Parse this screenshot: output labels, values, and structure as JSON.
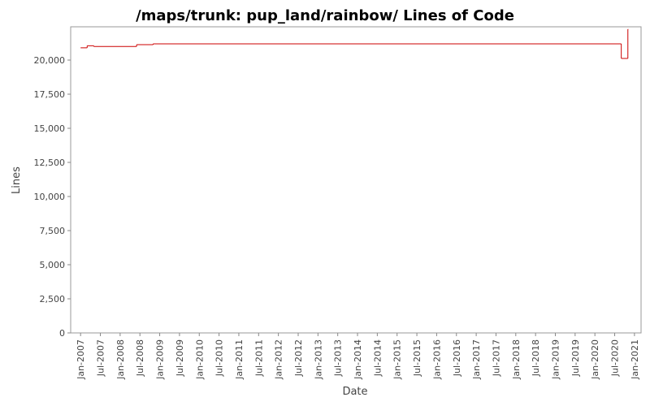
{
  "chart_data": {
    "type": "step-line",
    "title": "/maps/trunk: pup_land/rainbow/ Lines of Code",
    "x_label": "Date",
    "y_label": "Lines",
    "x": [
      "2007-01",
      "2007-03",
      "2007-05",
      "2008-06",
      "2008-11",
      "2020-09",
      "2020-11"
    ],
    "series": [
      {
        "name": "Lines",
        "color": "#cc0000",
        "values": [
          20900,
          21050,
          21000,
          21130,
          21190,
          20120,
          22260
        ]
      }
    ],
    "xlim": [
      "2006-10",
      "2021-03"
    ],
    "xticks": [
      {
        "value": "2007-01",
        "label": "Jan-2007"
      },
      {
        "value": "2007-07",
        "label": "Jul-2007"
      },
      {
        "value": "2008-01",
        "label": "Jan-2008"
      },
      {
        "value": "2008-07",
        "label": "Jul-2008"
      },
      {
        "value": "2009-01",
        "label": "Jan-2009"
      },
      {
        "value": "2009-07",
        "label": "Jul-2009"
      },
      {
        "value": "2010-01",
        "label": "Jan-2010"
      },
      {
        "value": "2010-07",
        "label": "Jul-2010"
      },
      {
        "value": "2011-01",
        "label": "Jan-2011"
      },
      {
        "value": "2011-07",
        "label": "Jul-2011"
      },
      {
        "value": "2012-01",
        "label": "Jan-2012"
      },
      {
        "value": "2012-07",
        "label": "Jul-2012"
      },
      {
        "value": "2013-01",
        "label": "Jan-2013"
      },
      {
        "value": "2013-07",
        "label": "Jul-2013"
      },
      {
        "value": "2014-01",
        "label": "Jan-2014"
      },
      {
        "value": "2014-07",
        "label": "Jul-2014"
      },
      {
        "value": "2015-01",
        "label": "Jan-2015"
      },
      {
        "value": "2015-07",
        "label": "Jul-2015"
      },
      {
        "value": "2016-01",
        "label": "Jan-2016"
      },
      {
        "value": "2016-07",
        "label": "Jul-2016"
      },
      {
        "value": "2017-01",
        "label": "Jan-2017"
      },
      {
        "value": "2017-07",
        "label": "Jul-2017"
      },
      {
        "value": "2018-01",
        "label": "Jan-2018"
      },
      {
        "value": "2018-07",
        "label": "Jul-2018"
      },
      {
        "value": "2019-01",
        "label": "Jan-2019"
      },
      {
        "value": "2019-07",
        "label": "Jul-2019"
      },
      {
        "value": "2020-01",
        "label": "Jan-2020"
      },
      {
        "value": "2020-07",
        "label": "Jul-2020"
      },
      {
        "value": "2021-01",
        "label": "Jan-2021"
      }
    ],
    "ylim": [
      0,
      22440
    ],
    "yticks": [
      0,
      {
        "value": 2500,
        "label": "2,500"
      },
      {
        "value": 5000,
        "label": "5,000"
      },
      {
        "value": 7500,
        "label": "7,500"
      },
      {
        "value": 10000,
        "label": "10,000"
      },
      {
        "value": 12500,
        "label": "12,500"
      },
      {
        "value": 15000,
        "label": "15,000"
      },
      {
        "value": 17500,
        "label": "17,500"
      },
      {
        "value": 20000,
        "label": "20,000"
      }
    ],
    "grid": false
  }
}
